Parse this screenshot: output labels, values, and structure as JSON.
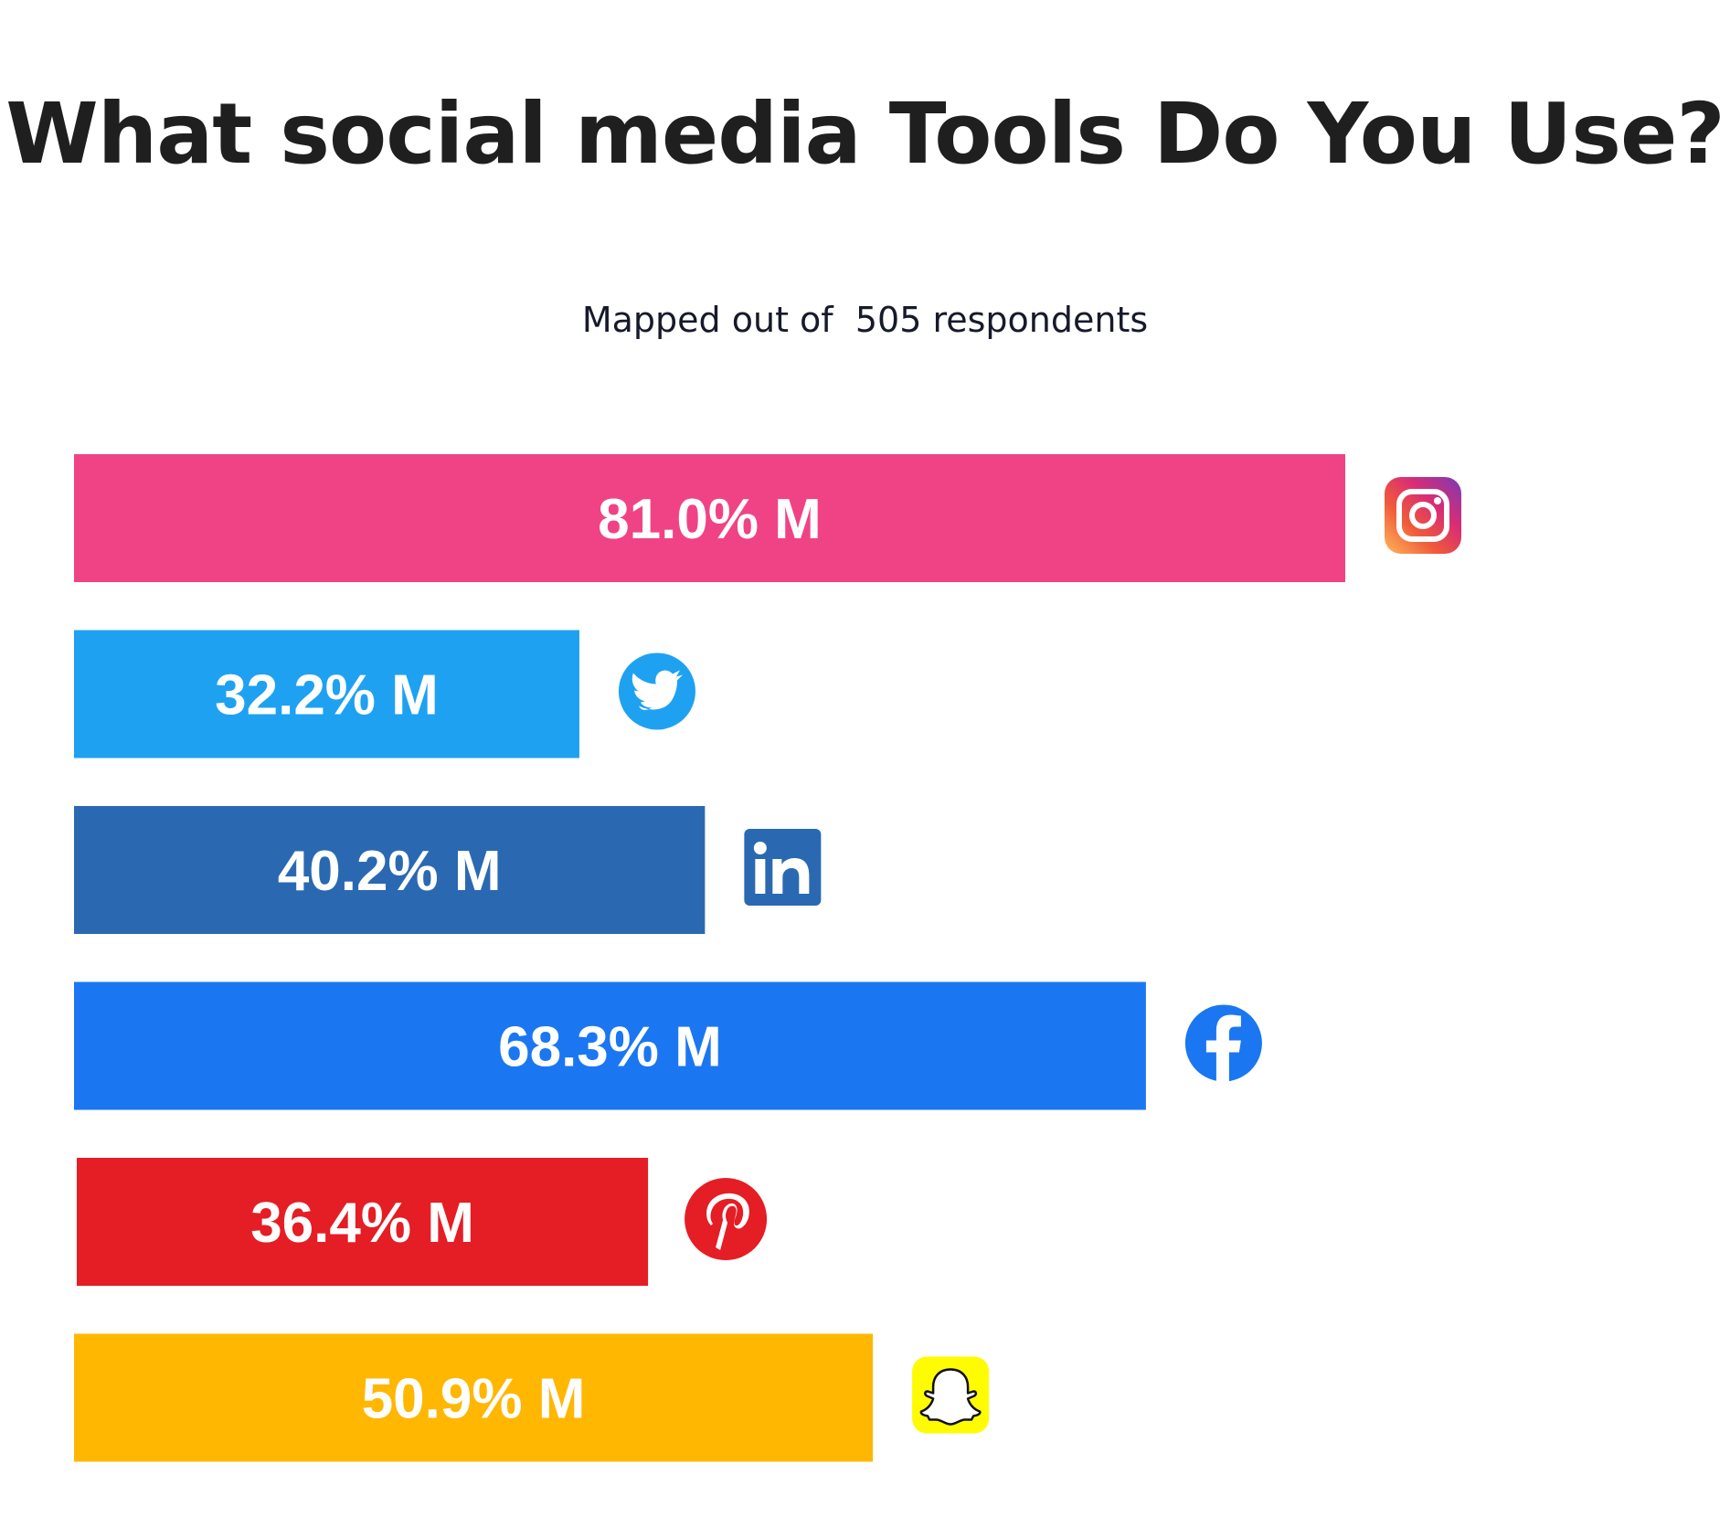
{
  "title": "What social media Tools Do You Use?",
  "subtitle": "Mapped out of  505 respondents",
  "colors": {
    "instagram": "#F04385",
    "twitter": "#1FA1F1",
    "linkedin": "#2A69B1",
    "facebook": "#1A77F1",
    "pinterest": "#E51D24",
    "snapchat": "#FFB702",
    "snapchat_icon_bg": "#FFFC00"
  },
  "chart_data": {
    "type": "bar",
    "orientation": "horizontal",
    "categories": [
      "instagram",
      "twitter",
      "linkedin",
      "facebook",
      "pinterest",
      "snapchat"
    ],
    "values": [
      81.0,
      32.2,
      40.2,
      68.3,
      36.4,
      50.9
    ],
    "value_labels": [
      "81.0% M",
      "32.2% M",
      "40.2% M",
      "68.3% M",
      "36.4% M",
      "50.9% M"
    ],
    "icons": [
      "instagram-icon",
      "twitter-icon",
      "linkedin-icon",
      "facebook-icon",
      "pinterest-icon",
      "snapchat-icon"
    ],
    "title": "What social media Tools Do You Use?",
    "subtitle": "Mapped out of  505 respondents",
    "xlim": [
      0,
      81.0
    ],
    "grid": false,
    "legend": "none"
  }
}
